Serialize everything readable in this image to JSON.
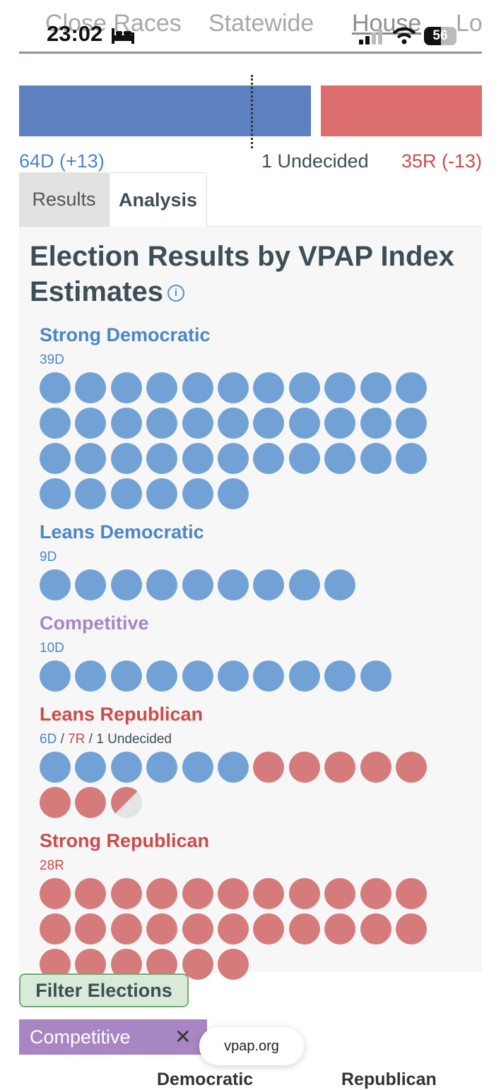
{
  "status_bar": {
    "time": "23:02",
    "battery": "56"
  },
  "nav": {
    "tabs": [
      "Close Races",
      "Statewide",
      "House",
      "Lo"
    ]
  },
  "balance": {
    "dem_seats": 64,
    "rep_seats": 35,
    "undecided_seats": 1,
    "dem_label": "64D (+13)",
    "undecided_label": "1 Undecided",
    "rep_label": "35R (-13)",
    "colors": {
      "dem": "#5d81c0",
      "rep": "#dc6d6d"
    }
  },
  "tabs": {
    "results": "Results",
    "analysis": "Analysis",
    "active": "Analysis"
  },
  "panel": {
    "title": "Election Results by VPAP Index Estimates",
    "info_icon": "i",
    "categories": [
      {
        "name": "Strong Democratic",
        "count_parts": [
          {
            "text": "39D",
            "party": "dem"
          }
        ],
        "dem": 39,
        "rep": 0,
        "undecided": 0,
        "title_color": "#4a86c8"
      },
      {
        "name": "Leans Democratic",
        "count_parts": [
          {
            "text": "9D",
            "party": "dem"
          }
        ],
        "dem": 9,
        "rep": 0,
        "undecided": 0,
        "title_color": "#4a86c8"
      },
      {
        "name": "Competitive",
        "count_parts": [
          {
            "text": "10D",
            "party": "dem"
          }
        ],
        "dem": 10,
        "rep": 0,
        "undecided": 0,
        "title_color": "#a886c4"
      },
      {
        "name": "Leans Republican",
        "count_parts": [
          {
            "text": "6D",
            "party": "dem"
          },
          {
            "text": " / ",
            "party": "sep"
          },
          {
            "text": "7R",
            "party": "rep"
          },
          {
            "text": " / ",
            "party": "sep"
          },
          {
            "text": "1 Undecided",
            "party": "und"
          }
        ],
        "dem": 6,
        "rep": 7,
        "undecided": 1,
        "title_color": "#cc4b4b"
      },
      {
        "name": "Strong Republican",
        "count_parts": [
          {
            "text": "28R",
            "party": "rep"
          }
        ],
        "dem": 0,
        "rep": 28,
        "undecided": 0,
        "title_color": "#cc4b4b"
      }
    ],
    "dot_colors": {
      "dem": "#72a2d5",
      "rep": "#d67b7b",
      "undecided": "#e4e4e4"
    }
  },
  "filter": {
    "button_label": "Filter Elections",
    "chip_label": "Competitive",
    "chip_close": "✕"
  },
  "browser": {
    "url": "vpap.org"
  },
  "table_headers": {
    "democratic": "Democratic",
    "republican": "Republican"
  }
}
